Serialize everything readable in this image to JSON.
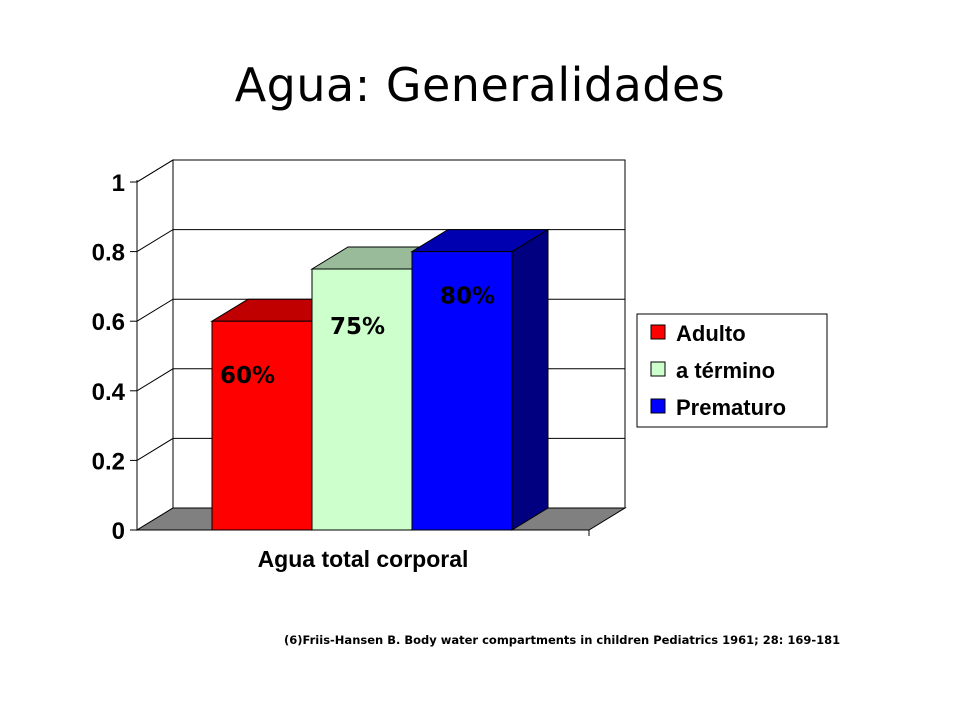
{
  "slide": {
    "title": "Agua: Generalidades",
    "citation": "(6)Friis-Hansen B. Body water compartments in children Pediatrics 1961; 28: 169-181"
  },
  "chart_data": {
    "type": "bar",
    "style": "3d-clustered",
    "categories": [
      "Agua total corporal"
    ],
    "series": [
      {
        "name": "Adulto",
        "values": [
          0.6
        ],
        "label": "60%",
        "color": "#ff0000",
        "side_color": "#c00000",
        "top_color": "#c00000"
      },
      {
        "name": "a término",
        "values": [
          0.75
        ],
        "label": "75%",
        "color": "#ccffcc",
        "side_color": "#99bb99",
        "top_color": "#99bb99"
      },
      {
        "name": "Prematuro",
        "values": [
          0.8
        ],
        "label": "80%",
        "color": "#0000ff",
        "side_color": "#000080",
        "top_color": "#0000b0"
      }
    ],
    "yticks": [
      "0",
      "0.2",
      "0.4",
      "0.6",
      "0.8",
      "1"
    ],
    "ylim": [
      0,
      1
    ],
    "grid": true,
    "legend_position": "right"
  }
}
